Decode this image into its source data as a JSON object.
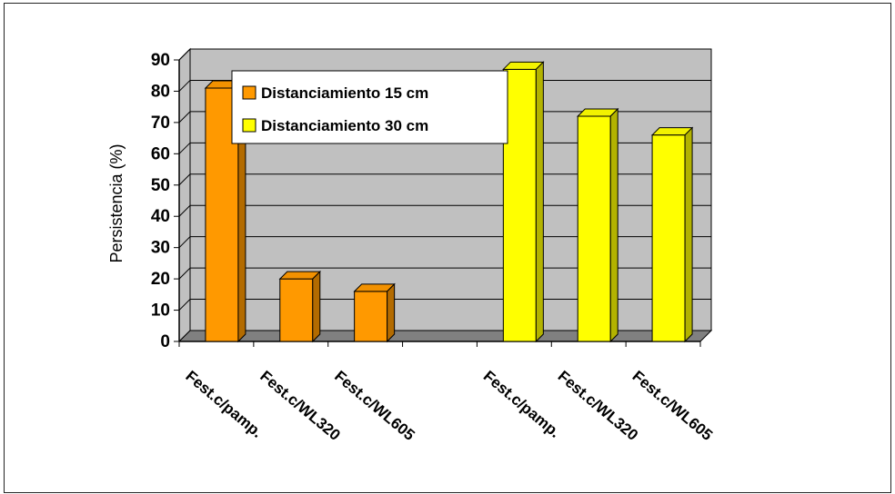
{
  "chart_data": {
    "type": "bar",
    "ylabel": "Persistencia (%)",
    "ylim": [
      0,
      90
    ],
    "yticks": [
      "0",
      "10",
      "20",
      "30",
      "40",
      "50",
      "60",
      "70",
      "80",
      "90"
    ],
    "categories": [
      "Fest.c/pamp.",
      "Fest.c/WL320",
      "Fest.c/WL605",
      "",
      "Fest.c/pamp.",
      "Fest.c/WL320",
      "Fest.c/WL605"
    ],
    "series": [
      {
        "name": "Distanciamiento 15 cm",
        "values": [
          81,
          20,
          16,
          null,
          null,
          null,
          null
        ]
      },
      {
        "name": "Distanciamiento 30 cm",
        "values": [
          null,
          null,
          null,
          null,
          87,
          72,
          66
        ]
      }
    ],
    "grid": true,
    "legend_position": "top-left"
  },
  "colors": {
    "series_15": "#ff9900",
    "series_30": "#ffff00",
    "back_wall": "#c0c0c0",
    "floor": "#808080"
  }
}
